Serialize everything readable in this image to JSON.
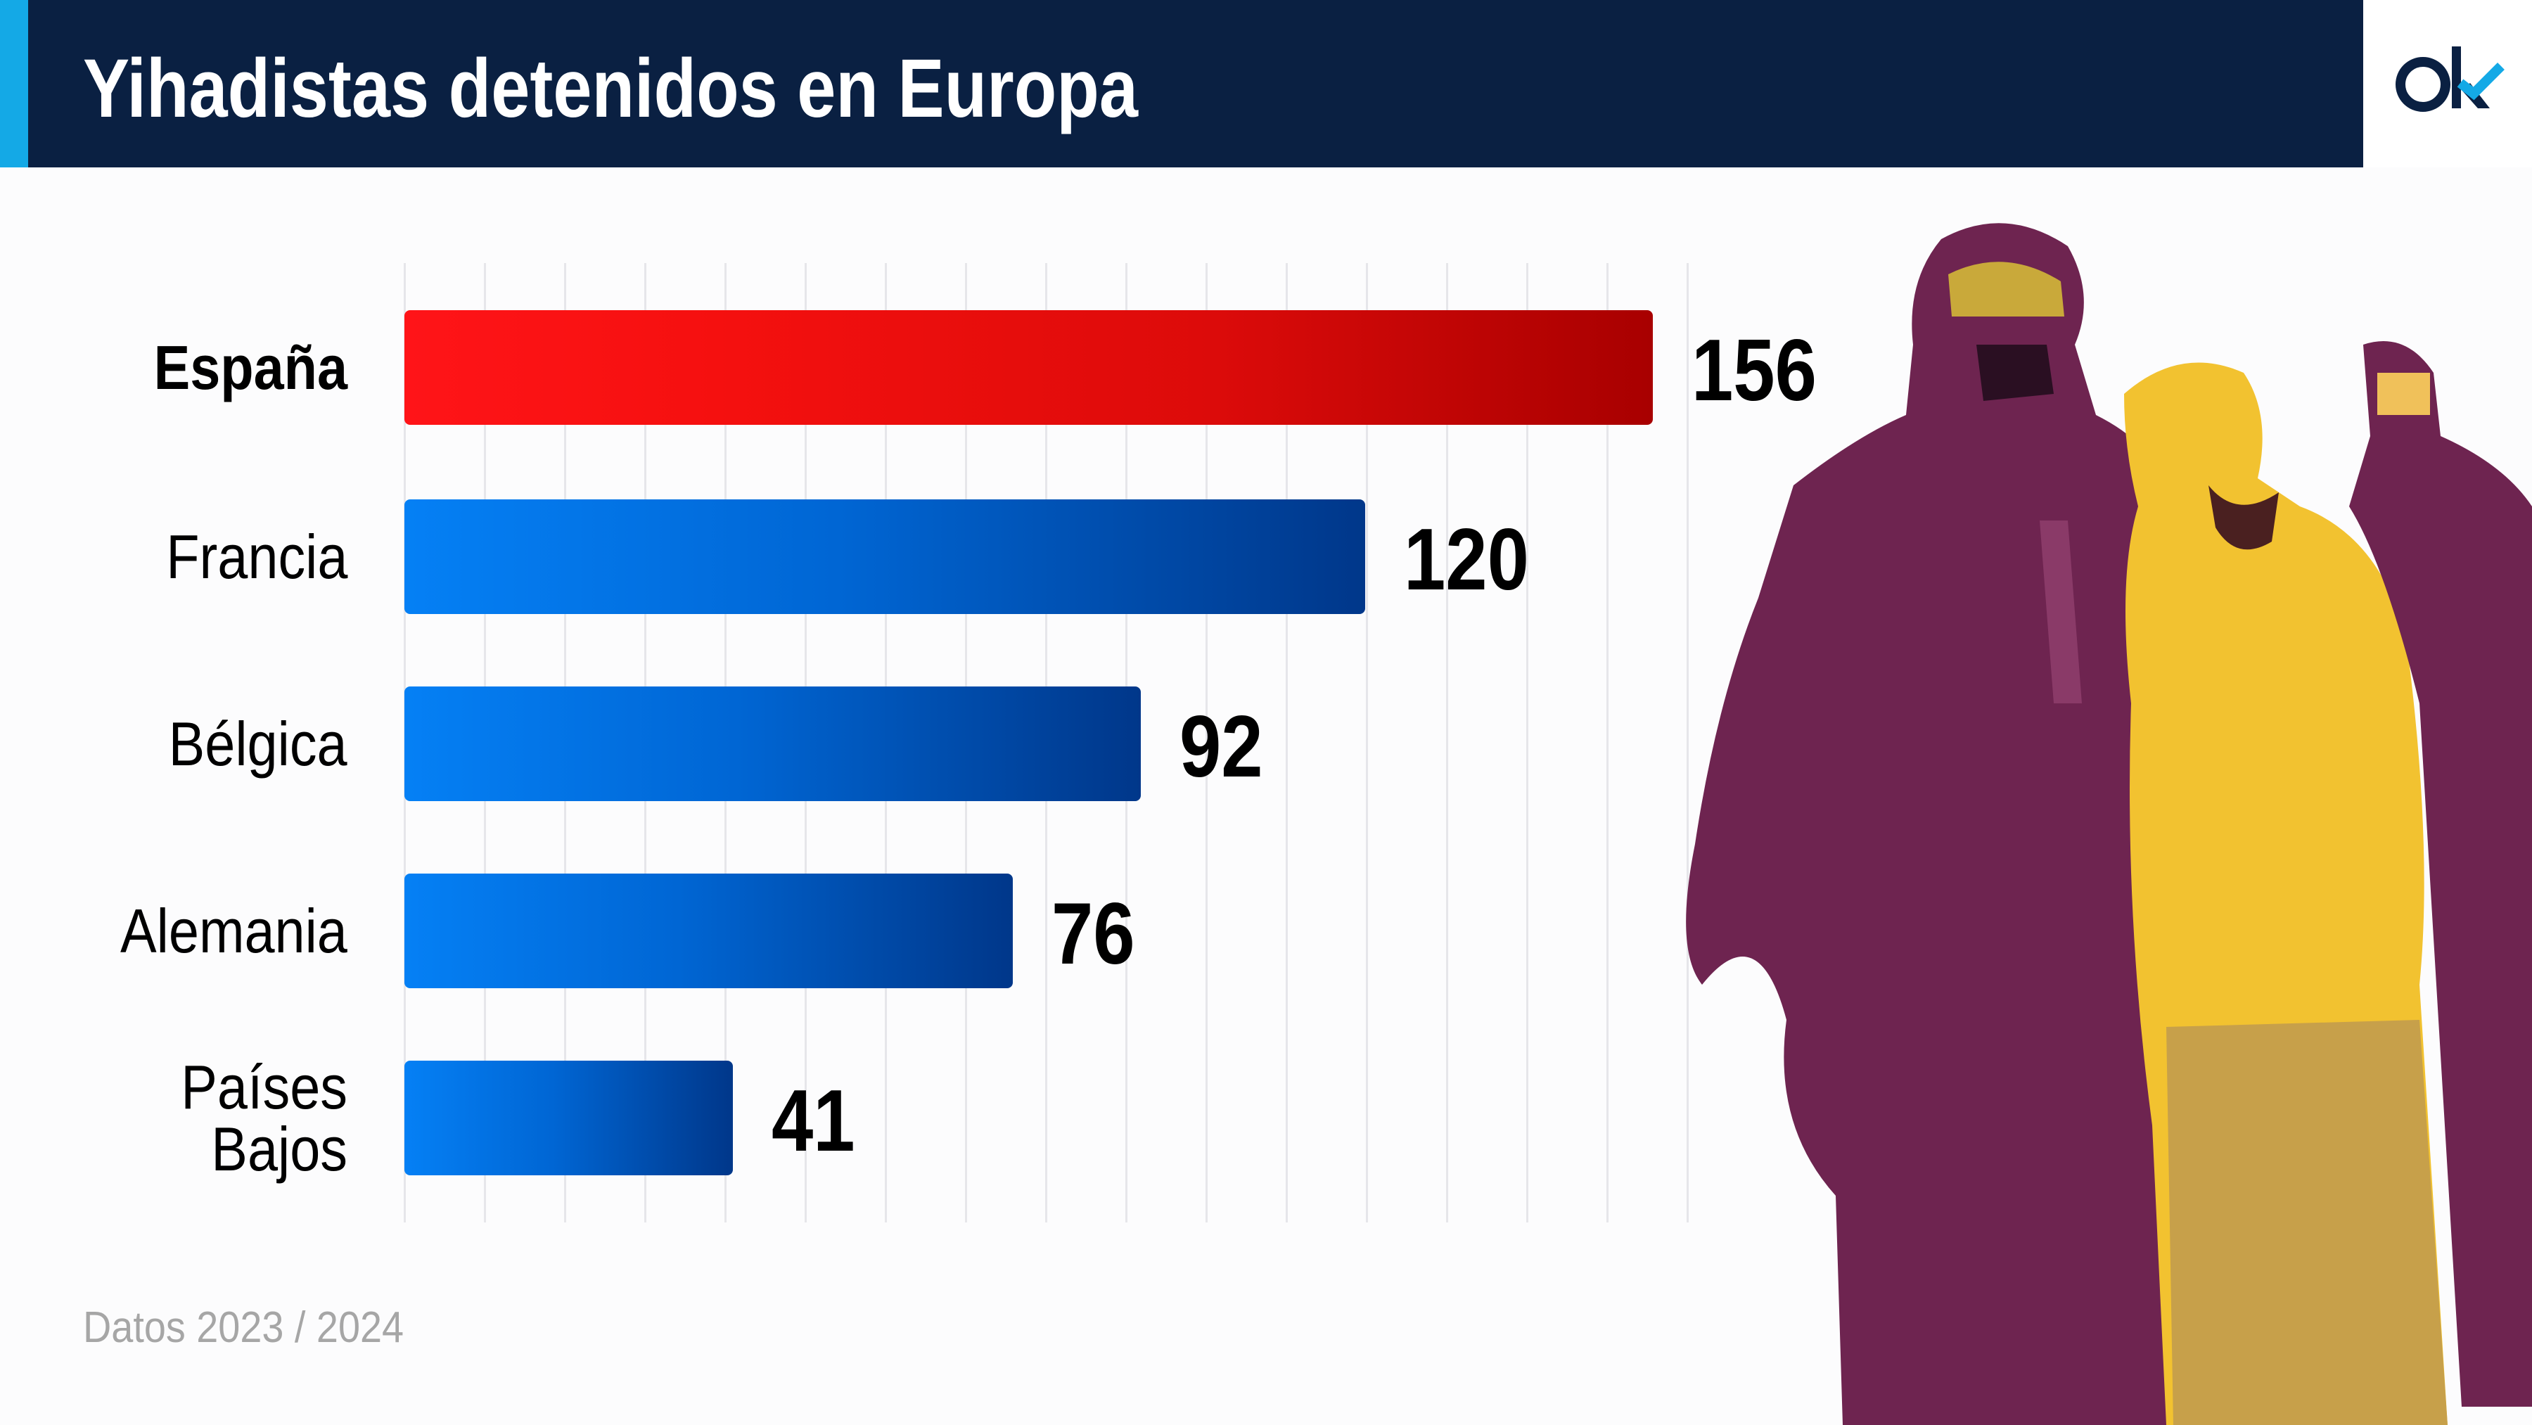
{
  "header": {
    "title": "Yihadistas detenidos en Europa",
    "logo_text": "ok"
  },
  "colors": {
    "header_bg": "#0a2042",
    "accent_stripe": "#14a9e6",
    "highlight_bar": "#e00d0d",
    "bar": "#0066d4",
    "logo_check": "#14a9e6"
  },
  "chart_data": {
    "type": "bar",
    "orientation": "horizontal",
    "title": "Yihadistas detenidos en Europa",
    "categories": [
      "España",
      "Francia",
      "Bélgica",
      "Alemania",
      "Países Bajos"
    ],
    "category_lines": [
      [
        "España"
      ],
      [
        "Francia"
      ],
      [
        "Bélgica"
      ],
      [
        "Alemania"
      ],
      [
        "Países",
        "Bajos"
      ]
    ],
    "values": [
      156,
      120,
      92,
      76,
      41
    ],
    "value_labels": [
      "156",
      "120",
      "92",
      "76",
      "41"
    ],
    "highlight": "España",
    "xlabel": "",
    "ylabel": "",
    "grid": "vertical",
    "xlim": [
      0,
      160
    ]
  },
  "footer": {
    "note": "Datos 2023 / 2024"
  },
  "image": {
    "icon": "photo-guard-escorting-detainee"
  }
}
